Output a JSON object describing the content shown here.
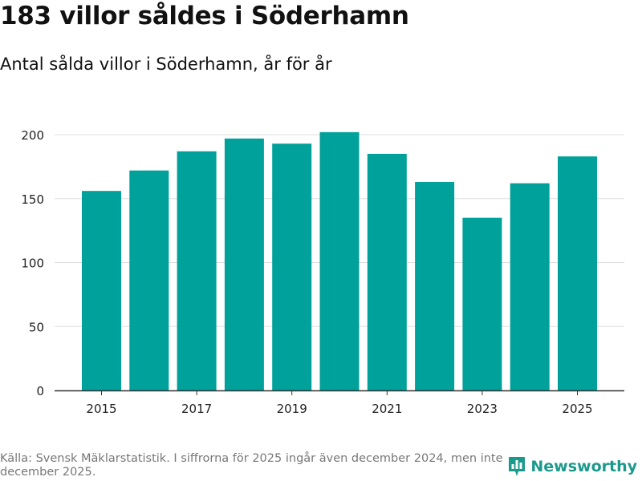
{
  "header": {
    "title": "183 villor såldes i Söderhamn",
    "subtitle": "Antal sålda villor i Söderhamn, år för år"
  },
  "footer": {
    "source": "Källa: Svensk Mäklarstatistik. I siffrorna för 2025 ingår även december 2024, men inte december 2025.",
    "brand": "Newsworthy"
  },
  "colors": {
    "bar": "#00a19a",
    "grid": "#dddddd",
    "axis": "#333333",
    "brand": "#1b9a8c"
  },
  "chart_data": {
    "type": "bar",
    "title": "183 villor såldes i Söderhamn",
    "subtitle": "Antal sålda villor i Söderhamn, år för år",
    "xlabel": "",
    "ylabel": "",
    "categories": [
      "2015",
      "2016",
      "2017",
      "2018",
      "2019",
      "2020",
      "2021",
      "2022",
      "2023",
      "2024",
      "2025"
    ],
    "values": [
      156,
      172,
      187,
      197,
      193,
      202,
      185,
      163,
      135,
      162,
      183
    ],
    "x_tick_labels": [
      "2015",
      "2017",
      "2019",
      "2021",
      "2023",
      "2025"
    ],
    "y_ticks": [
      0,
      50,
      100,
      150,
      200
    ],
    "ylim": [
      0,
      210
    ],
    "grid": true,
    "legend": "none"
  }
}
